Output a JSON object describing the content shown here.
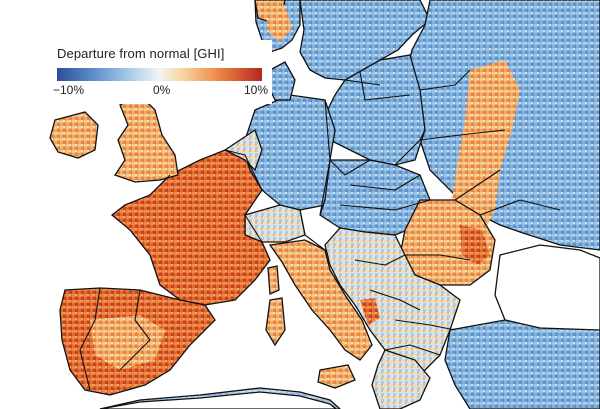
{
  "legend": {
    "title": "Departure from normal [GHI]",
    "min_label": "−10%",
    "mid_label": "0%",
    "max_label": "10%",
    "min_value": -10,
    "max_value": 10,
    "colors": {
      "strong_negative": "#2a4f9a",
      "negative": "#5e8fcb",
      "neutral": "#f2f4f3",
      "positive": "#ee8c48",
      "strong_positive": "#b5261e"
    }
  },
  "map": {
    "sea_color": "#ffffff",
    "border_color": "#111111"
  }
}
